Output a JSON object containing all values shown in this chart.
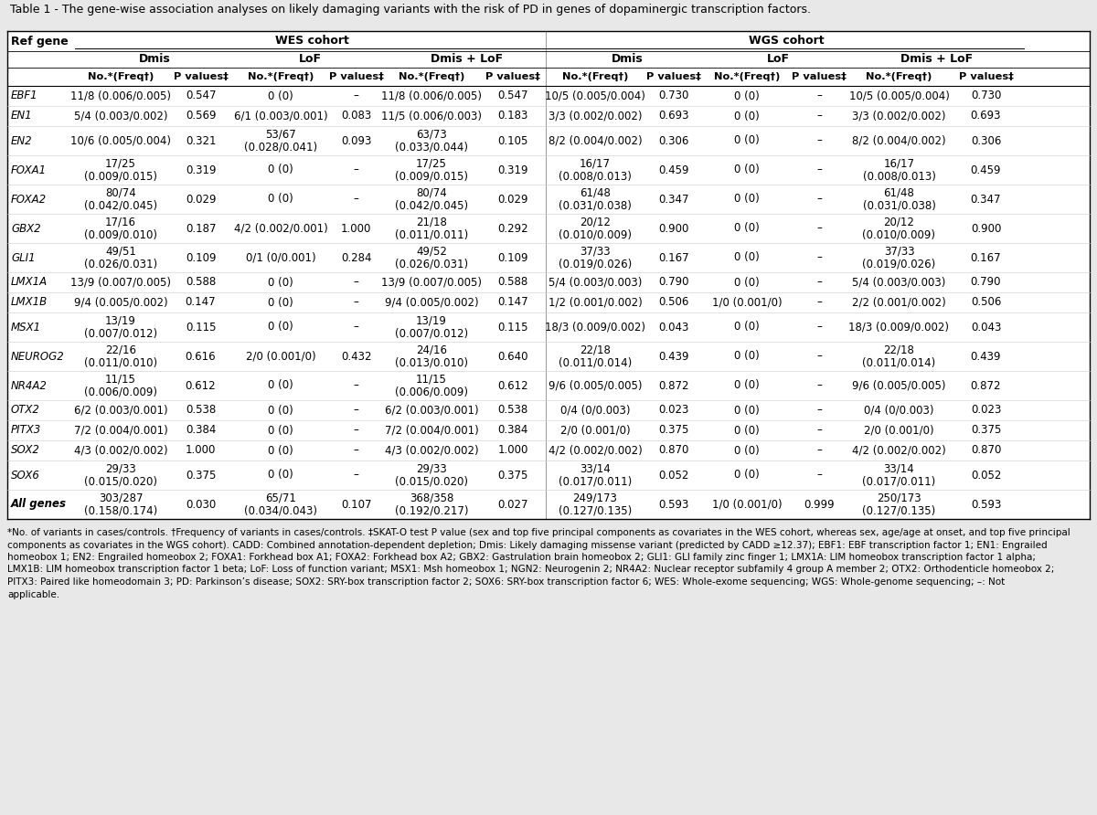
{
  "title": "Table 1 - The gene-wise association analyses on likely damaging variants with the risk of PD in genes of dopaminergic transcription factors.",
  "footnotes": [
    "*No. of variants in cases/controls. †Frequency of variants in cases/controls. ‡SKAT-O test P value (sex and top five principal components as covariates in the WES cohort, whereas sex, age/age at onset, and top five principal",
    "components as covariates in the WGS cohort). CADD: Combined annotation-dependent depletion; Dmis: Likely damaging missense variant (predicted by CADD ≥12.37); EBF1: EBF transcription factor 1; EN1: Engrailed",
    "homeobox 1; EN2: Engrailed homeobox 2; FOXA1: Forkhead box A1; FOXA2: Forkhead box A2; GBX2: Gastrulation brain homeobox 2; GLI1: GLI family zinc finger 1; LMX1A: LIM homeobox transcription factor 1 alpha;",
    "LMX1B: LIM homeobox transcription factor 1 beta; LoF: Loss of function variant; MSX1: Msh homeobox 1; NGN2: Neurogenin 2; NR4A2: Nuclear receptor subfamily 4 group A member 2; OTX2: Orthodenticle homeobox 2;",
    "PITX3: Paired like homeodomain 3; PD: Parkinson’s disease; SOX2: SRY-box transcription factor 2; SOX6: SRY-box transcription factor 6; WES: Whole-exome sequencing; WGS: Whole-genome sequencing; –: Not",
    "applicable."
  ],
  "rows": [
    [
      "EBF1",
      "11/8 (0.006/0.005)",
      "0.547",
      "0 (0)",
      "–",
      "11/8 (0.006/0.005)",
      "0.547",
      "10/5 (0.005/0.004)",
      "0.730",
      "0 (0)",
      "–",
      "10/5 (0.005/0.004)",
      "0.730"
    ],
    [
      "EN1",
      "5/4 (0.003/0.002)",
      "0.569",
      "6/1 (0.003/0.001)",
      "0.083",
      "11/5 (0.006/0.003)",
      "0.183",
      "3/3 (0.002/0.002)",
      "0.693",
      "0 (0)",
      "–",
      "3/3 (0.002/0.002)",
      "0.693"
    ],
    [
      "EN2",
      "10/6 (0.005/0.004)",
      "0.321",
      "53/67\n(0.028/0.041)",
      "0.093",
      "63/73\n(0.033/0.044)",
      "0.105",
      "8/2 (0.004/0.002)",
      "0.306",
      "0 (0)",
      "–",
      "8/2 (0.004/0.002)",
      "0.306"
    ],
    [
      "FOXA1",
      "17/25\n(0.009/0.015)",
      "0.319",
      "0 (0)",
      "–",
      "17/25\n(0.009/0.015)",
      "0.319",
      "16/17\n(0.008/0.013)",
      "0.459",
      "0 (0)",
      "–",
      "16/17\n(0.008/0.013)",
      "0.459"
    ],
    [
      "FOXA2",
      "80/74\n(0.042/0.045)",
      "0.029",
      "0 (0)",
      "–",
      "80/74\n(0.042/0.045)",
      "0.029",
      "61/48\n(0.031/0.038)",
      "0.347",
      "0 (0)",
      "–",
      "61/48\n(0.031/0.038)",
      "0.347"
    ],
    [
      "GBX2",
      "17/16\n(0.009/0.010)",
      "0.187",
      "4/2 (0.002/0.001)",
      "1.000",
      "21/18\n(0.011/0.011)",
      "0.292",
      "20/12\n(0.010/0.009)",
      "0.900",
      "0 (0)",
      "–",
      "20/12\n(0.010/0.009)",
      "0.900"
    ],
    [
      "GLI1",
      "49/51\n(0.026/0.031)",
      "0.109",
      "0/1 (0/0.001)",
      "0.284",
      "49/52\n(0.026/0.031)",
      "0.109",
      "37/33\n(0.019/0.026)",
      "0.167",
      "0 (0)",
      "–",
      "37/33\n(0.019/0.026)",
      "0.167"
    ],
    [
      "LMX1A",
      "13/9 (0.007/0.005)",
      "0.588",
      "0 (0)",
      "–",
      "13/9 (0.007/0.005)",
      "0.588",
      "5/4 (0.003/0.003)",
      "0.790",
      "0 (0)",
      "–",
      "5/4 (0.003/0.003)",
      "0.790"
    ],
    [
      "LMX1B",
      "9/4 (0.005/0.002)",
      "0.147",
      "0 (0)",
      "–",
      "9/4 (0.005/0.002)",
      "0.147",
      "1/2 (0.001/0.002)",
      "0.506",
      "1/0 (0.001/0)",
      "–",
      "2/2 (0.001/0.002)",
      "0.506"
    ],
    [
      "MSX1",
      "13/19\n(0.007/0.012)",
      "0.115",
      "0 (0)",
      "–",
      "13/19\n(0.007/0.012)",
      "0.115",
      "18/3 (0.009/0.002)",
      "0.043",
      "0 (0)",
      "–",
      "18/3 (0.009/0.002)",
      "0.043"
    ],
    [
      "NEUROG2",
      "22/16\n(0.011/0.010)",
      "0.616",
      "2/0 (0.001/0)",
      "0.432",
      "24/16\n(0.013/0.010)",
      "0.640",
      "22/18\n(0.011/0.014)",
      "0.439",
      "0 (0)",
      "–",
      "22/18\n(0.011/0.014)",
      "0.439"
    ],
    [
      "NR4A2",
      "11/15\n(0.006/0.009)",
      "0.612",
      "0 (0)",
      "–",
      "11/15\n(0.006/0.009)",
      "0.612",
      "9/6 (0.005/0.005)",
      "0.872",
      "0 (0)",
      "–",
      "9/6 (0.005/0.005)",
      "0.872"
    ],
    [
      "OTX2",
      "6/2 (0.003/0.001)",
      "0.538",
      "0 (0)",
      "–",
      "6/2 (0.003/0.001)",
      "0.538",
      "0/4 (0/0.003)",
      "0.023",
      "0 (0)",
      "–",
      "0/4 (0/0.003)",
      "0.023"
    ],
    [
      "PITX3",
      "7/2 (0.004/0.001)",
      "0.384",
      "0 (0)",
      "–",
      "7/2 (0.004/0.001)",
      "0.384",
      "2/0 (0.001/0)",
      "0.375",
      "0 (0)",
      "–",
      "2/0 (0.001/0)",
      "0.375"
    ],
    [
      "SOX2",
      "4/3 (0.002/0.002)",
      "1.000",
      "0 (0)",
      "–",
      "4/3 (0.002/0.002)",
      "1.000",
      "4/2 (0.002/0.002)",
      "0.870",
      "0 (0)",
      "–",
      "4/2 (0.002/0.002)",
      "0.870"
    ],
    [
      "SOX6",
      "29/33\n(0.015/0.020)",
      "0.375",
      "0 (0)",
      "–",
      "29/33\n(0.015/0.020)",
      "0.375",
      "33/14\n(0.017/0.011)",
      "0.052",
      "0 (0)",
      "–",
      "33/14\n(0.017/0.011)",
      "0.052"
    ],
    [
      "All genes",
      "303/287\n(0.158/0.174)",
      "0.030",
      "65/71\n(0.034/0.043)",
      "0.107",
      "368/358\n(0.192/0.217)",
      "0.027",
      "249/173\n(0.127/0.135)",
      "0.593",
      "1/0 (0.001/0)",
      "0.999",
      "250/173\n(0.127/0.135)",
      "0.593"
    ]
  ],
  "bg_color": "#e8e8e8",
  "title_fontsize": 9.0,
  "body_fontsize": 8.5,
  "header_fontsize": 9.0,
  "footnote_fontsize": 7.5
}
